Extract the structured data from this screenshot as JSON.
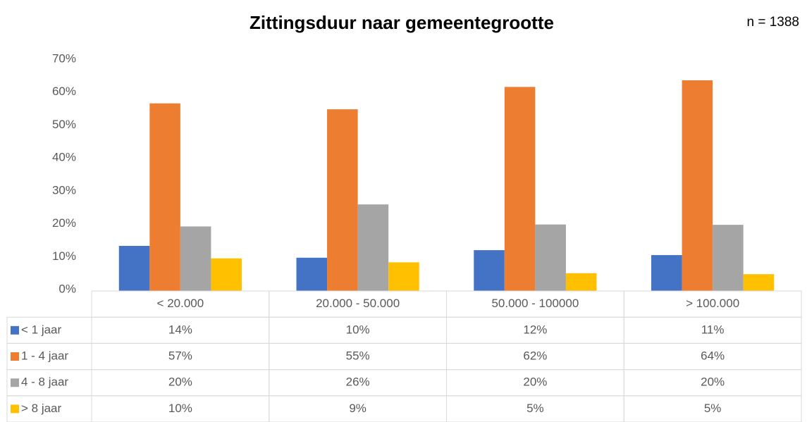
{
  "chart_data": {
    "type": "bar",
    "title": "Zittingsduur naar gemeentegrootte",
    "note": "n = 1388",
    "categories": [
      "< 20.000",
      "20.000 - 50.000",
      "50.000 - 100000",
      "> 100.000"
    ],
    "series": [
      {
        "name": "< 1 jaar",
        "color": "#4472c4",
        "values": [
          13.7,
          10.1,
          12.4,
          10.9
        ],
        "value_labels": [
          "14%",
          "10%",
          "12%",
          "11%"
        ]
      },
      {
        "name": "1 - 4 jaar",
        "color": "#ed7d31",
        "values": [
          57,
          55.2,
          62,
          64
        ],
        "value_labels": [
          "57%",
          "55%",
          "62%",
          "64%"
        ]
      },
      {
        "name": "4 - 8 jaar",
        "color": "#a5a5a5",
        "values": [
          19.6,
          26.3,
          20.2,
          20.1
        ],
        "value_labels": [
          "20%",
          "26%",
          "20%",
          "20%"
        ]
      },
      {
        "name": "> 8 jaar",
        "color": "#ffc000",
        "values": [
          9.9,
          8.7,
          5.4,
          5.1
        ],
        "value_labels": [
          "10%",
          "9%",
          "5%",
          "5%"
        ]
      }
    ],
    "ylim": [
      0,
      70
    ],
    "yticks": [
      {
        "value": 0,
        "label": "0%"
      },
      {
        "value": 10,
        "label": "10%"
      },
      {
        "value": 20,
        "label": "20%"
      },
      {
        "value": 30,
        "label": "30%"
      },
      {
        "value": 40,
        "label": "40%"
      },
      {
        "value": 50,
        "label": "50%"
      },
      {
        "value": 60,
        "label": "60%"
      },
      {
        "value": 70,
        "label": "70%"
      }
    ],
    "grid": false
  }
}
